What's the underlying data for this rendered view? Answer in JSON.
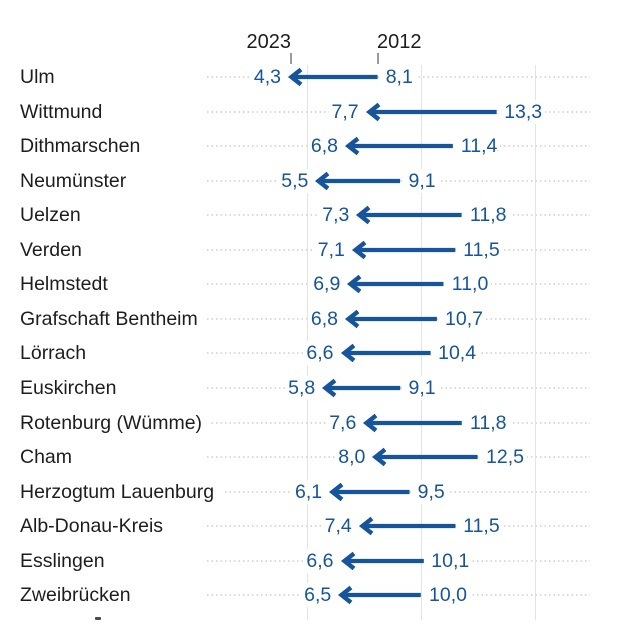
{
  "chart_data": {
    "type": "arrow",
    "title": "",
    "header_labels": {
      "left": "2023",
      "right": "2012"
    },
    "categories": [
      "Ulm",
      "Wittmund",
      "Dithmarschen",
      "Neumünster",
      "Uelzen",
      "Verden",
      "Helmstedt",
      "Grafschaft Bentheim",
      "Lörrach",
      "Euskirchen",
      "Rotenburg (Wümme)",
      "Cham",
      "Herzogtum Lauenburg",
      "Alb-Donau-Kreis",
      "Esslingen",
      "Zweibrücken"
    ],
    "series": [
      {
        "name": "2023",
        "values": [
          4.3,
          7.7,
          6.8,
          5.5,
          7.3,
          7.1,
          6.9,
          6.8,
          6.6,
          5.8,
          7.6,
          8.0,
          6.1,
          7.4,
          6.6,
          6.5
        ]
      },
      {
        "name": "2012",
        "values": [
          8.1,
          13.3,
          11.4,
          9.1,
          11.8,
          11.5,
          11.0,
          10.7,
          10.4,
          9.1,
          11.8,
          12.5,
          9.5,
          11.5,
          10.1,
          10.0
        ]
      }
    ],
    "value_format": {
      "decimals": 1,
      "decimal_separator": ","
    },
    "axis": {
      "min": 0,
      "max": 17.4,
      "gridlines": [
        5,
        10,
        15
      ],
      "grid": true,
      "direction": "arrows-point-left-from-2012-to-2023"
    },
    "legend_position": "top-as-column-headers",
    "colors": {
      "arrow": "#16549B",
      "value_label": "#16549B",
      "category_label": "#1D1D1D",
      "gridline": "#E4E4E4",
      "leader_dots": "#DBDBDB",
      "tick": "#9B9B9B",
      "background": "#FFFFFF"
    }
  }
}
